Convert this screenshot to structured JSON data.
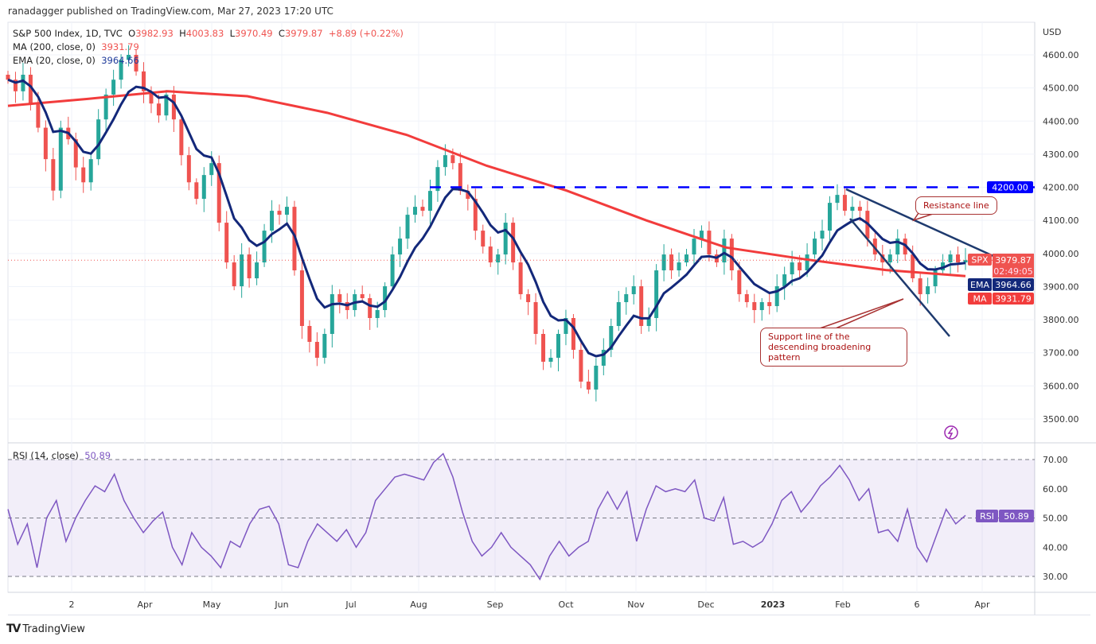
{
  "header": {
    "published": "ranadagger published on TradingView.com, Mar 27, 2023 17:20 UTC",
    "symbol_line": "S&P 500 Index, 1D, TVC",
    "open_label": "O",
    "open": "3982.93",
    "high_label": "H",
    "high": "4003.83",
    "low_label": "L",
    "low": "3970.49",
    "close_label": "C",
    "close": "3979.87",
    "change": "+8.89 (+0.22%)",
    "ma_label": "MA (200, close, 0)",
    "ma_value": "3931.79",
    "ema_label": "EMA (20, close, 0)",
    "ema_value": "3964.66",
    "rsi_label": "RSI (14, close)",
    "rsi_value": "50.89"
  },
  "axis": {
    "currency": "USD",
    "price_ticks": [
      "4600.00",
      "4500.00",
      "4400.00",
      "4300.00",
      "4200.00",
      "4100.00",
      "4000.00",
      "3900.00",
      "3800.00",
      "3700.00",
      "3600.00",
      "3500.00"
    ],
    "rsi_ticks": [
      "70.00",
      "60.00",
      "50.00",
      "40.00",
      "30.00"
    ],
    "time_ticks": [
      "2",
      "Apr",
      "May",
      "Jun",
      "Jul",
      "Aug",
      "Sep",
      "Oct",
      "Nov",
      "Dec",
      "2023",
      "Feb",
      "6",
      "Apr"
    ]
  },
  "badges": {
    "level": "4200.00",
    "spx_label": "SPX",
    "spx_price": "3979.87",
    "spx_countdown": "02:49:05",
    "ema_label": "EMA",
    "ema_price": "3964.66",
    "ma_label": "MA",
    "ma_price": "3931.79",
    "rsi_label": "RSI",
    "rsi_price": "50.89"
  },
  "annotations": {
    "resistance": "Resistance line",
    "support": "Support line of the descending broadening pattern"
  },
  "footer": {
    "brand": "TradingView"
  },
  "colors": {
    "up": "#26a69a",
    "down": "#ef5350",
    "ma": "#f23c3c",
    "ema": "#13287a",
    "rsi": "#7e57c2",
    "level": "#0000ff"
  },
  "chart_data": [
    {
      "type": "candlestick",
      "title": "S&P 500 Index, 1D, TVC",
      "ylim": [
        3480,
        4640
      ],
      "close": [
        4525,
        4490,
        4540,
        4453,
        4380,
        4285,
        4190,
        4380,
        4345,
        4260,
        4215,
        4285,
        4405,
        4480,
        4525,
        4585,
        4600,
        4550,
        4490,
        4453,
        4417,
        4480,
        4405,
        4297,
        4215,
        4165,
        4237,
        4273,
        4093,
        3973,
        3901,
        3997,
        3925,
        3973,
        4069,
        4129,
        4117,
        4141,
        3949,
        3781,
        3733,
        3685,
        3757,
        3877,
        3853,
        3829,
        3877,
        3865,
        3805,
        3829,
        3901,
        3997,
        4045,
        4117,
        4141,
        4129,
        4189,
        4261,
        4297,
        4273,
        4189,
        4165,
        4069,
        4021,
        3973,
        3997,
        4093,
        3973,
        3877,
        3853,
        3757,
        3673,
        3685,
        3757,
        3805,
        3709,
        3613,
        3589,
        3661,
        3709,
        3781,
        3853,
        3877,
        3901,
        3781,
        3805,
        3949,
        3997,
        3949,
        3973,
        3997,
        4045,
        4069,
        3997,
        3973,
        4045,
        3949,
        3877,
        3853,
        3829,
        3853,
        3841,
        3901,
        3937,
        3973,
        3949,
        3997,
        4045,
        4069,
        4153,
        4177,
        4129,
        4141,
        4129,
        4045,
        3997,
        3973,
        3997,
        4045,
        3997,
        3925,
        3877,
        3901,
        3949,
        3973,
        3997,
        3973,
        3980
      ],
      "ma200": [
        4446,
        4467,
        4490,
        4475,
        4425,
        4358,
        4265,
        4190,
        4100,
        4018,
        3982,
        3950,
        3931.79
      ],
      "ema20_last": 3964.66,
      "horizontal_level": 4200
    },
    {
      "type": "line",
      "title": "RSI (14, close)",
      "ylim": [
        27,
        75
      ],
      "bands": [
        30,
        70
      ],
      "values": [
        53,
        41,
        48,
        33,
        50,
        56,
        42,
        50,
        56,
        61,
        59,
        65,
        56,
        50,
        45,
        49,
        52,
        40,
        34,
        45,
        40,
        37,
        33,
        42,
        40,
        48,
        53,
        54,
        48,
        34,
        33,
        42,
        48,
        45,
        42,
        46,
        40,
        45,
        56,
        60,
        64,
        65,
        64,
        63,
        69,
        72,
        64,
        52,
        42,
        37,
        40,
        45,
        40,
        37,
        34,
        29,
        37,
        42,
        37,
        40,
        42,
        53,
        59,
        53,
        59,
        42,
        53,
        61,
        59,
        60,
        59,
        63,
        50,
        49,
        57,
        41,
        42,
        40,
        42,
        48,
        56,
        59,
        52,
        56,
        61,
        64,
        68,
        63,
        56,
        60,
        45,
        46,
        42,
        53,
        40,
        35,
        44,
        53,
        48,
        50.89
      ]
    }
  ]
}
